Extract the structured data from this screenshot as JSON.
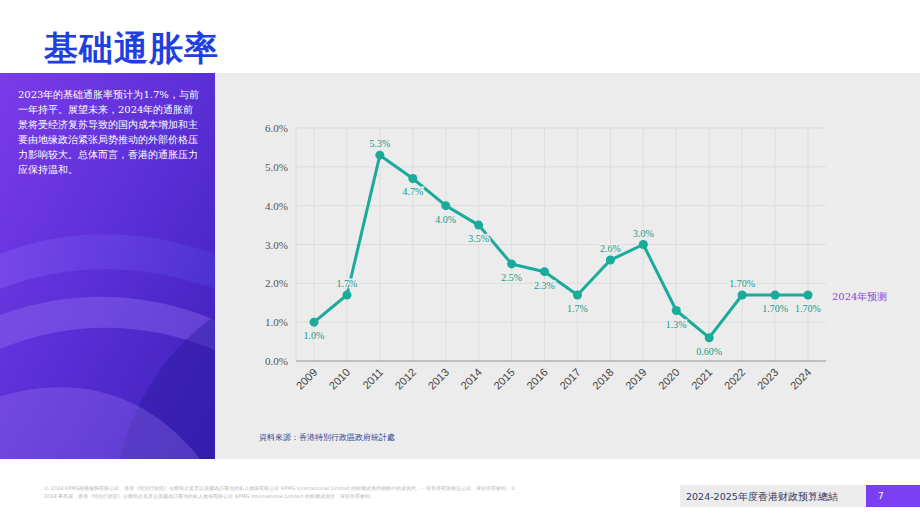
{
  "slide": {
    "title": "基础通胀率",
    "body": "2023年的基础通胀率预计为1.7%，与前一年持平。展望未来，2024年的通胀前景将受经济复苏导致的国内成本增加和主要由地缘政治紧张局势推动的外部价格压力影响较大。总体而言，香港的通胀压力应保持温和。",
    "source": "資料來源：香港特別行政區政府統計處",
    "copyright": "© 2024 KPMG税務服務有限公司，香港《特別行政區》合夥制企業及以英國為註冊地的私人擔保有限公司 KPMG International Limited 的附屬成員所網絡中的成員所，一家香港有限責任公司，保留所有權利。© 2024 畢馬威，香港《特別行政區》合夥制企業及以英國為註冊地的私人擔保有限公司 KPMG International Limited 的附屬成員所，保留所有權利。",
    "footer": "2024-2025年度香港财政预算總結",
    "page": "7"
  },
  "chart_data": {
    "type": "line",
    "categories": [
      "2009",
      "2010",
      "2011",
      "2012",
      "2013",
      "2014",
      "2015",
      "2016",
      "2017",
      "2018",
      "2019",
      "2020",
      "2021",
      "2022",
      "2023",
      "2024"
    ],
    "values": [
      1.0,
      1.7,
      5.3,
      4.7,
      4.0,
      3.5,
      2.5,
      2.3,
      1.7,
      2.6,
      3.0,
      1.3,
      0.6,
      1.7,
      1.7,
      1.7
    ],
    "value_labels": [
      "1.0%",
      "1.7%",
      "5.3%",
      "4.7%",
      "4.0%",
      "3.5%",
      "2.5%",
      "2.3%",
      "1.7%",
      "2.6%",
      "3.0%",
      "1.3%",
      "0.60%",
      "1.70%",
      "1.70%",
      "1.70%"
    ],
    "color": "#1aab9b",
    "marker": "circle",
    "data_labels": true,
    "grid": true,
    "ylim": [
      0,
      6
    ],
    "yticks": [
      {
        "value": 0,
        "label": "0.0%"
      },
      {
        "value": 1,
        "label": "1.0%"
      },
      {
        "value": 2,
        "label": "2.0%"
      },
      {
        "value": 3,
        "label": "3.0%"
      },
      {
        "value": 4,
        "label": "4.0%"
      },
      {
        "value": 5,
        "label": "5.0%"
      },
      {
        "value": 6,
        "label": "6.0%"
      }
    ],
    "annotations": [
      "2024年预测"
    ]
  }
}
